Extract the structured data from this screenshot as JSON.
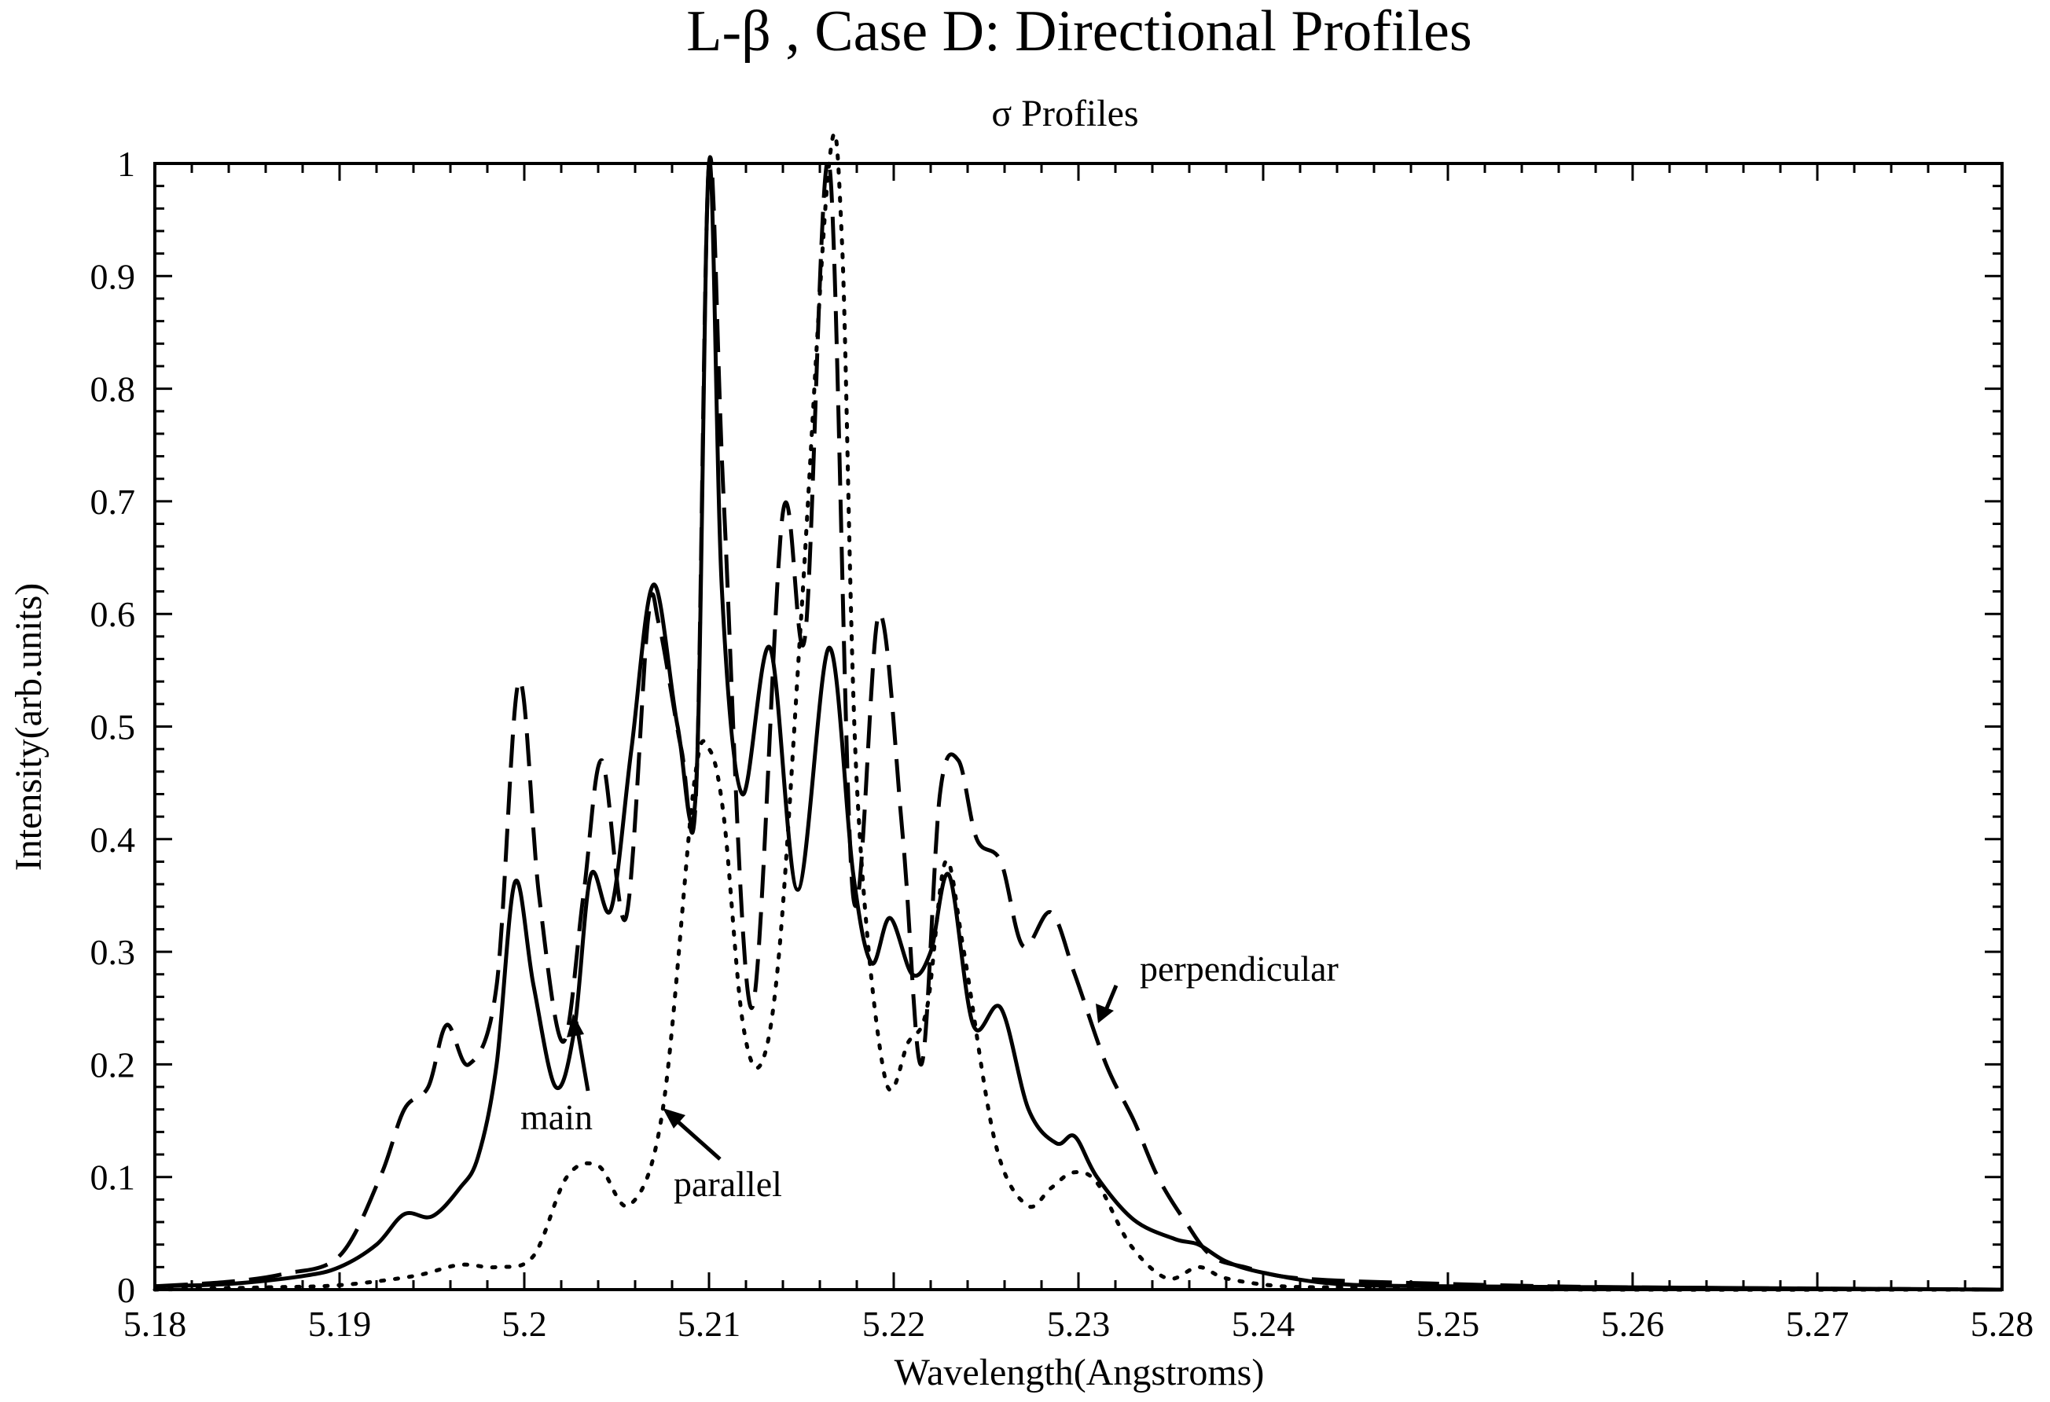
{
  "chart_data": {
    "type": "line",
    "title": "L-β  , Case D: Directional Profiles",
    "subtitle": "σ  Profiles",
    "xlabel": "Wavelength(Angstroms)",
    "ylabel": "Intensity(arb.units)",
    "xlim": [
      5.18,
      5.28
    ],
    "ylim": [
      0,
      1
    ],
    "xticks": [
      "5.18",
      "5.19",
      "5.2",
      "5.21",
      "5.22",
      "5.23",
      "5.24",
      "5.25",
      "5.26",
      "5.27",
      "5.28"
    ],
    "yticks": [
      "0",
      "0.1",
      "0.2",
      "0.3",
      "0.4",
      "0.5",
      "0.6",
      "0.7",
      "0.8",
      "0.9",
      "1"
    ],
    "grid": false,
    "legend": "none",
    "series": [
      {
        "name": "main",
        "style": "solid",
        "x": [
          5.18,
          5.184,
          5.188,
          5.19,
          5.192,
          5.1935,
          5.195,
          5.1965,
          5.1975,
          5.1985,
          5.1995,
          5.2005,
          5.2017,
          5.2027,
          5.2036,
          5.2047,
          5.2058,
          5.207,
          5.2083,
          5.2093,
          5.21,
          5.2107,
          5.2118,
          5.2133,
          5.2148,
          5.2165,
          5.2178,
          5.2188,
          5.2198,
          5.221,
          5.222,
          5.223,
          5.2243,
          5.2258,
          5.2273,
          5.2288,
          5.2298,
          5.231,
          5.233,
          5.2352,
          5.2365,
          5.238,
          5.24,
          5.244,
          5.25,
          5.26,
          5.27,
          5.28
        ],
        "y": [
          0.003,
          0.005,
          0.012,
          0.02,
          0.04,
          0.067,
          0.065,
          0.09,
          0.118,
          0.2,
          0.362,
          0.27,
          0.18,
          0.23,
          0.368,
          0.338,
          0.48,
          0.626,
          0.5,
          0.445,
          1.0,
          0.62,
          0.44,
          0.57,
          0.355,
          0.57,
          0.37,
          0.29,
          0.33,
          0.28,
          0.3,
          0.368,
          0.235,
          0.25,
          0.16,
          0.13,
          0.136,
          0.1,
          0.062,
          0.045,
          0.04,
          0.025,
          0.015,
          0.005,
          0.003,
          0.002,
          0.001,
          0.0
        ]
      },
      {
        "name": "parallel",
        "style": "dotted",
        "x": [
          5.18,
          5.186,
          5.19,
          5.194,
          5.1965,
          5.1985,
          5.2005,
          5.2023,
          5.204,
          5.2057,
          5.2075,
          5.2092,
          5.21,
          5.2108,
          5.2118,
          5.2128,
          5.2138,
          5.215,
          5.2165,
          5.2172,
          5.218,
          5.2195,
          5.2208,
          5.2218,
          5.2228,
          5.2238,
          5.2255,
          5.2272,
          5.2285,
          5.2297,
          5.231,
          5.2328,
          5.2348,
          5.2365,
          5.238,
          5.241,
          5.245,
          5.25,
          5.26,
          5.28
        ],
        "y": [
          0.0,
          0.002,
          0.004,
          0.012,
          0.022,
          0.02,
          0.03,
          0.1,
          0.11,
          0.075,
          0.16,
          0.45,
          0.48,
          0.42,
          0.24,
          0.2,
          0.3,
          0.6,
          1.0,
          0.93,
          0.45,
          0.19,
          0.22,
          0.25,
          0.38,
          0.3,
          0.13,
          0.075,
          0.09,
          0.104,
          0.095,
          0.04,
          0.01,
          0.02,
          0.01,
          0.003,
          0.002,
          0.001,
          0.0,
          0.0
        ]
      },
      {
        "name": "perpendicular",
        "style": "dashed",
        "x": [
          5.18,
          5.184,
          5.187,
          5.19,
          5.1922,
          5.1935,
          5.1948,
          5.1958,
          5.197,
          5.1985,
          5.1997,
          5.2008,
          5.2021,
          5.2032,
          5.2042,
          5.2055,
          5.2067,
          5.2073,
          5.2085,
          5.2093,
          5.21,
          5.2108,
          5.2123,
          5.214,
          5.2152,
          5.2165,
          5.2178,
          5.2192,
          5.2205,
          5.2215,
          5.2225,
          5.2235,
          5.2245,
          5.2258,
          5.227,
          5.2285,
          5.2298,
          5.2315,
          5.233,
          5.2343,
          5.2358,
          5.2372,
          5.239,
          5.242,
          5.25,
          5.26,
          5.28
        ],
        "y": [
          0.003,
          0.007,
          0.014,
          0.03,
          0.1,
          0.16,
          0.18,
          0.235,
          0.2,
          0.27,
          0.54,
          0.35,
          0.22,
          0.35,
          0.47,
          0.33,
          0.595,
          0.59,
          0.48,
          0.44,
          1.0,
          0.7,
          0.25,
          0.69,
          0.58,
          1.0,
          0.35,
          0.6,
          0.4,
          0.2,
          0.44,
          0.47,
          0.4,
          0.38,
          0.305,
          0.335,
          0.28,
          0.2,
          0.15,
          0.1,
          0.06,
          0.03,
          0.02,
          0.01,
          0.005,
          0.002,
          0.0
        ]
      }
    ],
    "annotations": [
      {
        "text": "main"
      },
      {
        "text": "parallel"
      },
      {
        "text": "perpendicular"
      }
    ]
  }
}
